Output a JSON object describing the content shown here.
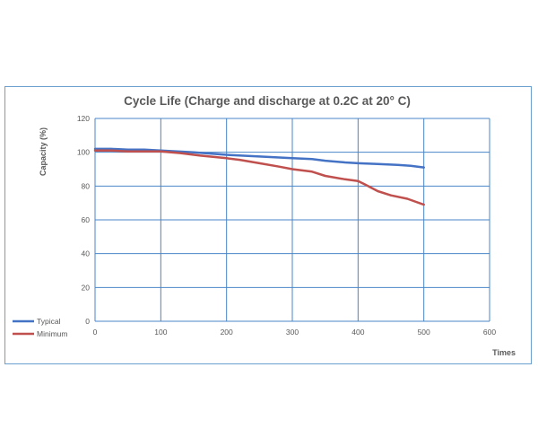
{
  "chart_data": {
    "type": "line",
    "title": "Cycle Life   (Charge and discharge at 0.2C at 20°  C)",
    "xlabel": "Times",
    "ylabel": "Capacity (%)",
    "xlim": [
      0,
      600
    ],
    "ylim": [
      0,
      120
    ],
    "x_ticks": [
      0,
      100,
      200,
      300,
      400,
      500,
      600
    ],
    "y_ticks": [
      0,
      20,
      40,
      60,
      80,
      100,
      120
    ],
    "grid": true,
    "legend_position": "left",
    "series": [
      {
        "name": "Typical",
        "color": "#4472c4",
        "x": [
          0,
          25,
          50,
          75,
          100,
          150,
          200,
          250,
          300,
          330,
          350,
          380,
          400,
          430,
          460,
          480,
          500
        ],
        "y": [
          102,
          102,
          101.5,
          101.5,
          101,
          100,
          98.5,
          97.5,
          96.5,
          96,
          95,
          94,
          93.5,
          93,
          92.5,
          92,
          91
        ]
      },
      {
        "name": "Minimum",
        "color": "#c0504d",
        "x": [
          0,
          25,
          50,
          75,
          100,
          130,
          160,
          200,
          220,
          250,
          280,
          300,
          330,
          350,
          380,
          400,
          410,
          430,
          450,
          475,
          500
        ],
        "y": [
          101,
          101,
          100.5,
          100.5,
          100.5,
          99.5,
          98,
          96.5,
          95.5,
          93.5,
          91.5,
          90,
          88.5,
          86,
          84,
          83,
          81,
          77,
          74.5,
          72.5,
          69
        ]
      }
    ]
  }
}
